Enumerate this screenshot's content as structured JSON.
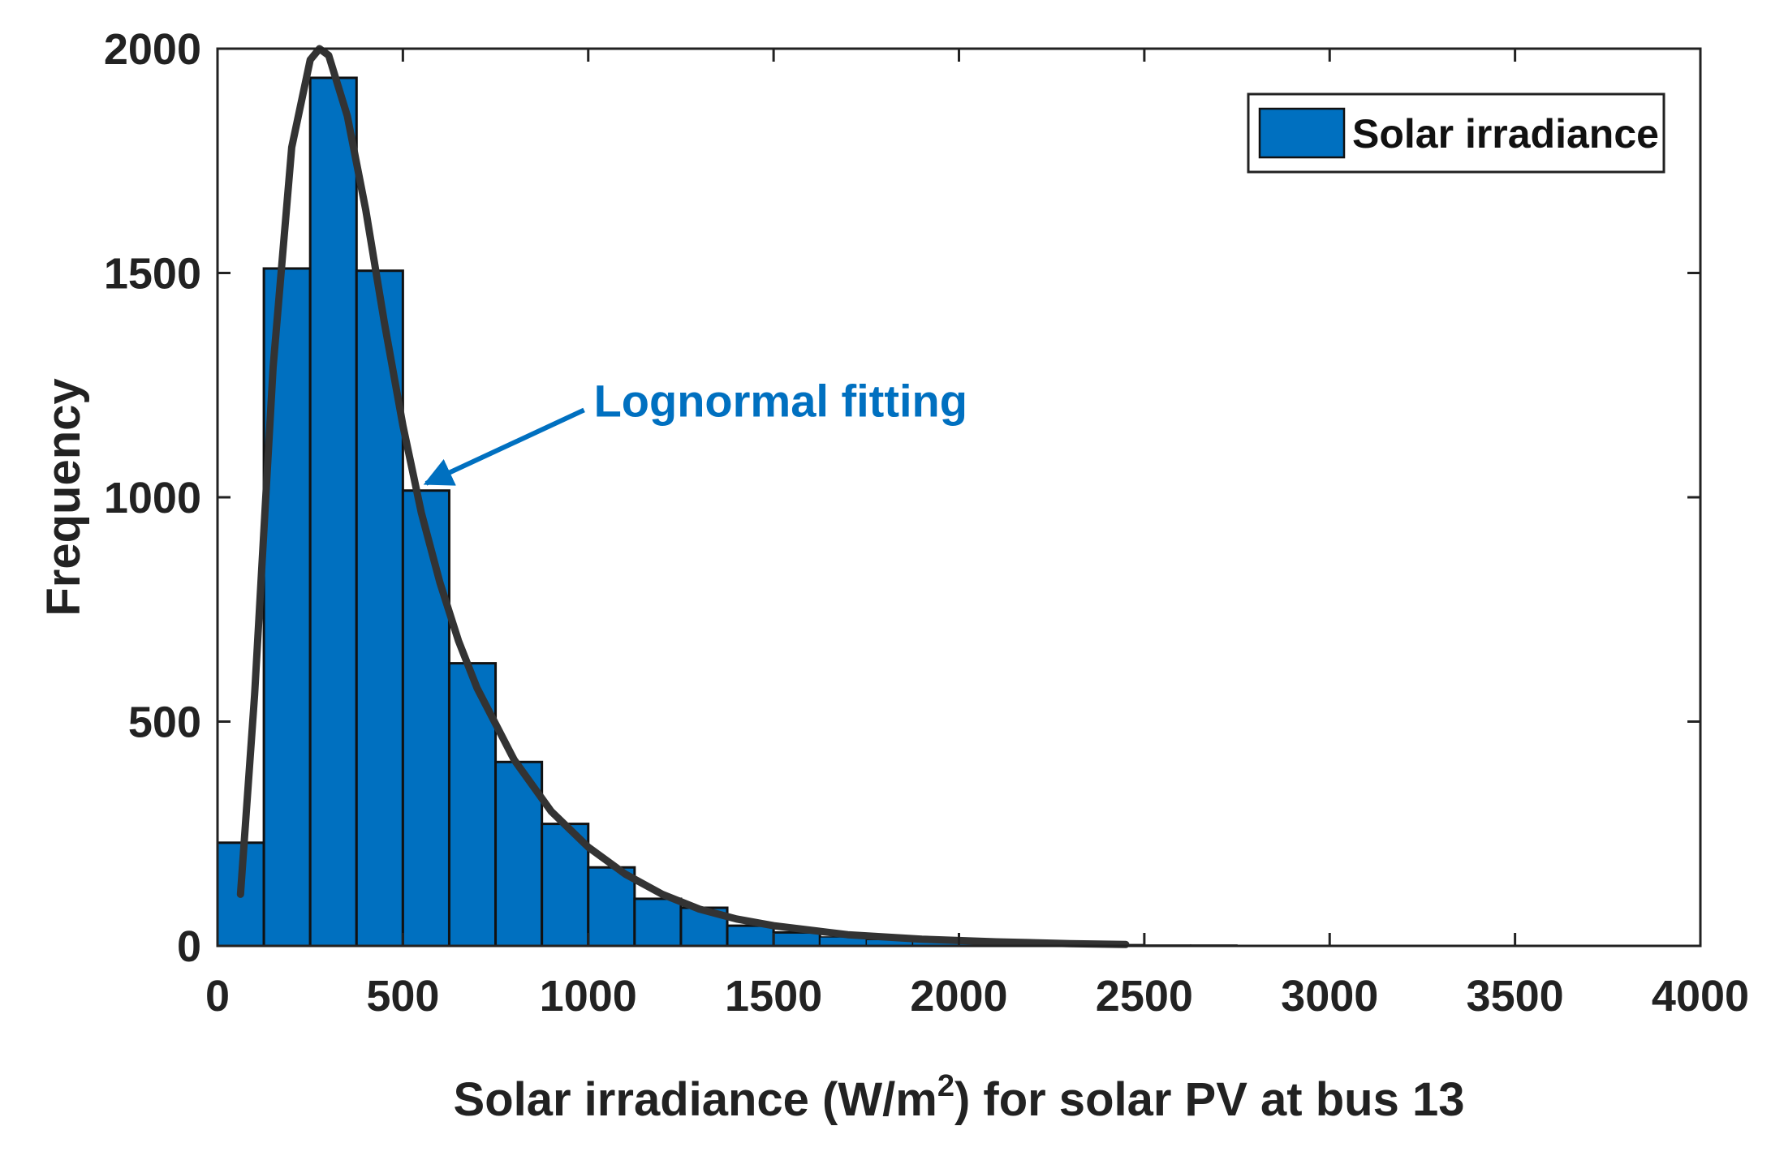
{
  "chart_data": {
    "type": "bar",
    "title": "",
    "xlabel_prefix": "Solar irradiance (W/m",
    "xlabel_sup": "2",
    "xlabel_suffix": ") for solar PV at bus 13",
    "ylabel": "Frequency",
    "xlim": [
      0,
      4000
    ],
    "ylim": [
      0,
      2000
    ],
    "xticks": [
      0,
      500,
      1000,
      1500,
      2000,
      2500,
      3000,
      3500,
      4000
    ],
    "yticks": [
      0,
      500,
      1000,
      1500,
      2000
    ],
    "bin_width": 125,
    "bins": [
      {
        "x0": 0,
        "value": 230
      },
      {
        "x0": 125,
        "value": 1510
      },
      {
        "x0": 250,
        "value": 1935
      },
      {
        "x0": 375,
        "value": 1505
      },
      {
        "x0": 500,
        "value": 1015
      },
      {
        "x0": 625,
        "value": 630
      },
      {
        "x0": 750,
        "value": 410
      },
      {
        "x0": 875,
        "value": 272
      },
      {
        "x0": 1000,
        "value": 175
      },
      {
        "x0": 1125,
        "value": 105
      },
      {
        "x0": 1250,
        "value": 85
      },
      {
        "x0": 1375,
        "value": 45
      },
      {
        "x0": 1500,
        "value": 30
      },
      {
        "x0": 1625,
        "value": 20
      },
      {
        "x0": 1750,
        "value": 14
      },
      {
        "x0": 1875,
        "value": 10
      },
      {
        "x0": 2000,
        "value": 8
      },
      {
        "x0": 2125,
        "value": 5
      },
      {
        "x0": 2250,
        "value": 4
      },
      {
        "x0": 2375,
        "value": 3
      },
      {
        "x0": 2500,
        "value": 2
      },
      {
        "x0": 2625,
        "value": 2
      },
      {
        "x0": 2750,
        "value": 1
      },
      {
        "x0": 2875,
        "value": 1
      },
      {
        "x0": 3000,
        "value": 1
      },
      {
        "x0": 3125,
        "value": 0
      },
      {
        "x0": 3250,
        "value": 0
      },
      {
        "x0": 3375,
        "value": 0
      },
      {
        "x0": 3500,
        "value": 0
      },
      {
        "x0": 3625,
        "value": 1
      },
      {
        "x0": 3750,
        "value": 0
      },
      {
        "x0": 3875,
        "value": 0
      }
    ],
    "fit_curve": {
      "x": [
        62,
        100,
        150,
        200,
        250,
        275,
        300,
        350,
        400,
        450,
        500,
        550,
        600,
        650,
        700,
        800,
        900,
        1000,
        1100,
        1200,
        1300,
        1400,
        1500,
        1700,
        1900,
        2100,
        2300,
        2450
      ],
      "y": [
        115,
        560,
        1290,
        1780,
        1975,
        2000,
        1985,
        1850,
        1640,
        1390,
        1160,
        965,
        810,
        680,
        575,
        415,
        300,
        220,
        160,
        115,
        82,
        60,
        45,
        25,
        15,
        9,
        5,
        3
      ]
    },
    "legend": {
      "label": "Solar irradiance",
      "placement": "top-right"
    },
    "annotation": {
      "text": "Lognormal fitting",
      "arrow_to": [
        545,
        1020
      ],
      "text_at": [
        1015,
        1180
      ]
    },
    "colors": {
      "bar": "#0070c0",
      "bar_edge": "#111111",
      "curve": "#333333",
      "annotation": "#0070c0",
      "axis": "#222222"
    },
    "grid": false
  }
}
